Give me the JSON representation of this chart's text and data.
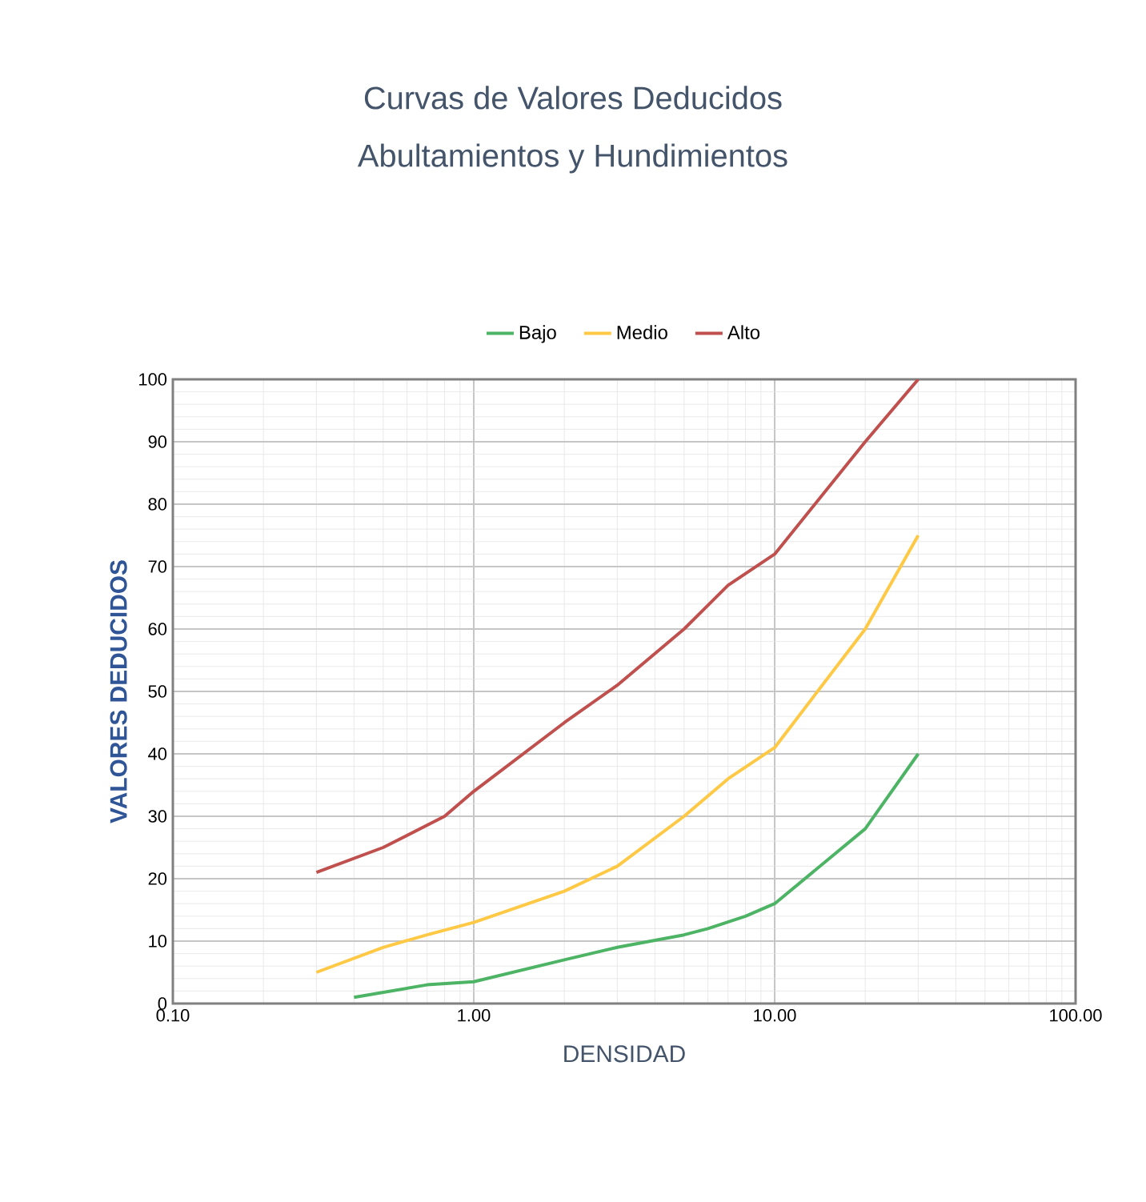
{
  "chart_data": {
    "type": "line",
    "title": "Curvas de Valores Deducidos",
    "subtitle": "Abultamientos y Hundimientos",
    "xlabel": "DENSIDAD",
    "ylabel": "VALORES DEDUCIDOS",
    "log": "x",
    "xlim": [
      0.1,
      100
    ],
    "xticks": [
      {
        "value": 0.1,
        "label": "0.10"
      },
      {
        "value": 1,
        "label": "1.00"
      },
      {
        "value": 10,
        "label": "10.00"
      },
      {
        "value": 100,
        "label": "100.00"
      }
    ],
    "ylim": [
      0,
      100
    ],
    "yticks": [
      0,
      10,
      20,
      30,
      40,
      50,
      60,
      70,
      80,
      90,
      100
    ],
    "grid": true,
    "legend": "top",
    "marker": "none",
    "series": [
      {
        "name": "Bajo",
        "color": "#4cb464",
        "x": [
          0.4,
          0.7,
          1,
          2,
          3,
          5,
          6,
          8,
          10,
          20,
          30
        ],
        "values": [
          1,
          3,
          3.5,
          7,
          9,
          11,
          12,
          14,
          16,
          28,
          40
        ]
      },
      {
        "name": "Medio",
        "color": "#ffc845",
        "x": [
          0.3,
          0.5,
          0.7,
          1,
          2,
          3,
          5,
          7,
          10,
          20,
          30
        ],
        "values": [
          5,
          9,
          11,
          13,
          18,
          22,
          30,
          36,
          41,
          60,
          75
        ]
      },
      {
        "name": "Alto",
        "color": "#c0504d",
        "x": [
          0.3,
          0.5,
          0.8,
          1,
          2,
          3,
          5,
          7,
          10,
          20,
          30
        ],
        "values": [
          21,
          25,
          30,
          34,
          45,
          51,
          60,
          67,
          72,
          90,
          100
        ]
      }
    ]
  }
}
